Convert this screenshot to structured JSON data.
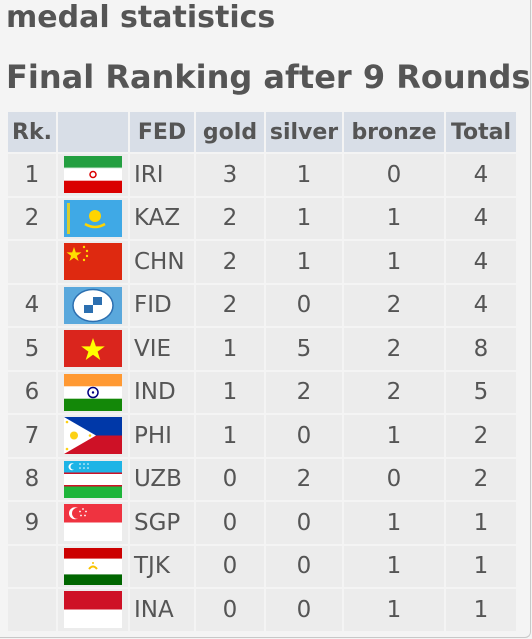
{
  "page": {
    "title": "medal statistics",
    "subtitle": "Final Ranking after 9 Rounds"
  },
  "table": {
    "headers": {
      "rank": "Rk.",
      "flag": "",
      "fed": "FED",
      "gold": "gold",
      "silver": "silver",
      "bronze": "bronze",
      "total": "Total"
    },
    "rows": [
      {
        "rank": "1",
        "fed": "IRI",
        "flag_icon": "iran-flag-icon",
        "gold": "3",
        "silver": "1",
        "bronze": "0",
        "total": "4"
      },
      {
        "rank": "2",
        "fed": "KAZ",
        "flag_icon": "kazakhstan-flag-icon",
        "gold": "2",
        "silver": "1",
        "bronze": "1",
        "total": "4"
      },
      {
        "rank": "",
        "fed": "CHN",
        "flag_icon": "china-flag-icon",
        "gold": "2",
        "silver": "1",
        "bronze": "1",
        "total": "4"
      },
      {
        "rank": "4",
        "fed": "FID",
        "flag_icon": "fide-flag-icon",
        "gold": "2",
        "silver": "0",
        "bronze": "2",
        "total": "4"
      },
      {
        "rank": "5",
        "fed": "VIE",
        "flag_icon": "vietnam-flag-icon",
        "gold": "1",
        "silver": "5",
        "bronze": "2",
        "total": "8"
      },
      {
        "rank": "6",
        "fed": "IND",
        "flag_icon": "india-flag-icon",
        "gold": "1",
        "silver": "2",
        "bronze": "2",
        "total": "5"
      },
      {
        "rank": "7",
        "fed": "PHI",
        "flag_icon": "philippines-flag-icon",
        "gold": "1",
        "silver": "0",
        "bronze": "1",
        "total": "2"
      },
      {
        "rank": "8",
        "fed": "UZB",
        "flag_icon": "uzbekistan-flag-icon",
        "gold": "0",
        "silver": "2",
        "bronze": "0",
        "total": "2"
      },
      {
        "rank": "9",
        "fed": "SGP",
        "flag_icon": "singapore-flag-icon",
        "gold": "0",
        "silver": "0",
        "bronze": "1",
        "total": "1"
      },
      {
        "rank": "",
        "fed": "TJK",
        "flag_icon": "tajikistan-flag-icon",
        "gold": "0",
        "silver": "0",
        "bronze": "1",
        "total": "1"
      },
      {
        "rank": "",
        "fed": "INA",
        "flag_icon": "indonesia-flag-icon",
        "gold": "0",
        "silver": "0",
        "bronze": "1",
        "total": "1"
      }
    ]
  },
  "colors": {
    "header_bg": "#d8dee7",
    "cell_bg": "#ececec",
    "text": "#555555"
  }
}
